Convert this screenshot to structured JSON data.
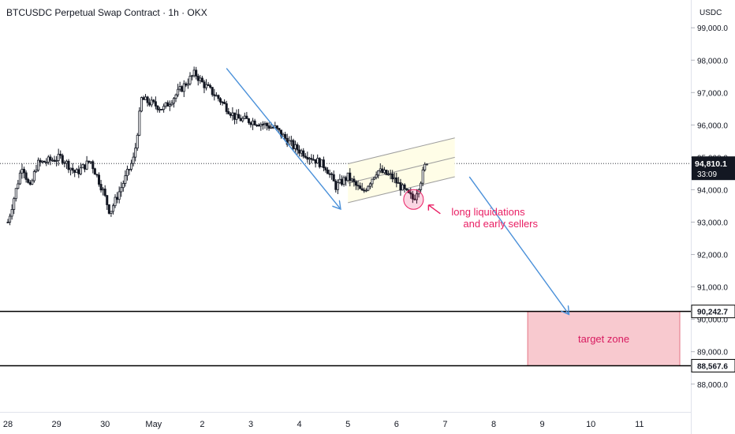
{
  "header": {
    "title": "BTCUSDC Perpetual Swap Contract · 1h · OKX",
    "currency": "USDC"
  },
  "chart_data": {
    "type": "candlestick",
    "instrument": "BTCUSDC Perpetual Swap Contract",
    "interval": "1h",
    "exchange": "OKX",
    "y_ticks": [
      88000,
      89000,
      90000,
      91000,
      92000,
      93000,
      94000,
      95000,
      96000,
      97000,
      98000,
      99000
    ],
    "y_tick_labels": [
      "88,000.0",
      "89,000.0",
      "90,000.0",
      "91,000.0",
      "92,000.0",
      "93,000.0",
      "94,000.0",
      "95,000.0",
      "96,000.0",
      "97,000.0",
      "98,000.0",
      "99,000.0"
    ],
    "x_tick_labels": [
      "28",
      "29",
      "30",
      "May",
      "2",
      "3",
      "4",
      "5",
      "6",
      "7",
      "8",
      "9",
      "10",
      "11"
    ],
    "x_tick_index": [
      0,
      1,
      2,
      3,
      4,
      5,
      6,
      7,
      8,
      9,
      10,
      11,
      12,
      13
    ],
    "price_path": [
      {
        "t": 0.0,
        "p": 93000
      },
      {
        "t": 0.3,
        "p": 94800
      },
      {
        "t": 0.45,
        "p": 94000
      },
      {
        "t": 0.6,
        "p": 94800
      },
      {
        "t": 0.85,
        "p": 94900
      },
      {
        "t": 1.1,
        "p": 95000
      },
      {
        "t": 1.4,
        "p": 94500
      },
      {
        "t": 1.7,
        "p": 94900
      },
      {
        "t": 1.95,
        "p": 94000
      },
      {
        "t": 2.1,
        "p": 93300
      },
      {
        "t": 2.4,
        "p": 94300
      },
      {
        "t": 2.6,
        "p": 95000
      },
      {
        "t": 2.75,
        "p": 96800
      },
      {
        "t": 3.2,
        "p": 96500
      },
      {
        "t": 3.5,
        "p": 97000
      },
      {
        "t": 3.85,
        "p": 97600
      },
      {
        "t": 4.0,
        "p": 97300
      },
      {
        "t": 4.35,
        "p": 96800
      },
      {
        "t": 4.7,
        "p": 96200
      },
      {
        "t": 5.1,
        "p": 96100
      },
      {
        "t": 5.5,
        "p": 95900
      },
      {
        "t": 5.9,
        "p": 95300
      },
      {
        "t": 6.25,
        "p": 95000
      },
      {
        "t": 6.55,
        "p": 94700
      },
      {
        "t": 6.75,
        "p": 94100
      },
      {
        "t": 7.0,
        "p": 94400
      },
      {
        "t": 7.3,
        "p": 93900
      },
      {
        "t": 7.6,
        "p": 94600
      },
      {
        "t": 7.9,
        "p": 94400
      },
      {
        "t": 8.2,
        "p": 93900
      },
      {
        "t": 8.35,
        "p": 93700
      },
      {
        "t": 8.5,
        "p": 94300
      },
      {
        "t": 8.62,
        "p": 94900
      },
      {
        "t": 8.66,
        "p": 94810
      }
    ],
    "current_price": 94810.1,
    "current_price_label": "94,810.1",
    "countdown": "33:09",
    "levels": [
      {
        "value": 90242.7,
        "label": "90,242.7"
      },
      {
        "value": 88567.6,
        "label": "88,567.6"
      }
    ],
    "annotations": {
      "arrow_drop": {
        "from": [
          4.5,
          97750
        ],
        "to": [
          6.85,
          93400
        ]
      },
      "channel": {
        "upper": {
          "from": [
            7.0,
            94800
          ],
          "to": [
            9.2,
            95600
          ]
        },
        "middle": {
          "from": [
            7.0,
            94200
          ],
          "to": [
            9.2,
            95000
          ]
        },
        "lower": {
          "from": [
            7.0,
            93600
          ],
          "to": [
            9.2,
            94400
          ]
        }
      },
      "arrow_target": {
        "from": [
          9.5,
          94400
        ],
        "to": [
          11.55,
          90150
        ]
      },
      "liquidation_circle": {
        "center": [
          8.35,
          93700
        ]
      },
      "liquidation_text": [
        "long liquidations",
        "and early sellers"
      ],
      "target_zone": {
        "x_from": 10.7,
        "x_to": 13.9,
        "y_top": 90242.7,
        "y_bottom": 88567.6,
        "label": "target zone"
      }
    },
    "colors": {
      "arrow": "#4a90d9",
      "channel": "#9e9e9e",
      "channel_fill": "#fffde7",
      "annotation_text": "#e91e63",
      "target_fill": "#f8c9cf",
      "target_border": "#e57383",
      "target_text": "#d81b60",
      "candle": "#131722",
      "price_label_bg": "#131722"
    }
  }
}
